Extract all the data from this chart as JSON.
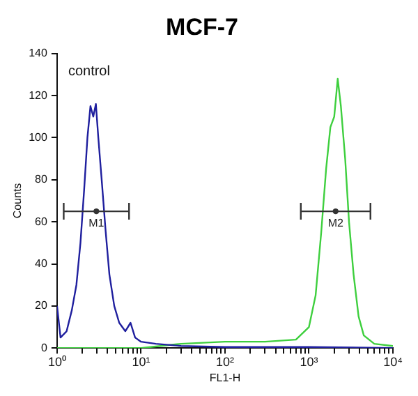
{
  "chart_data": {
    "type": "line",
    "title": "MCF-7",
    "xlabel": "FL1-H",
    "ylabel": "Counts",
    "log": "x",
    "legend": false,
    "grid": false,
    "xlim": [
      1,
      10000
    ],
    "ylim": [
      0,
      140
    ],
    "xticks": [
      {
        "value": 1,
        "label": "10⁰"
      },
      {
        "value": 2,
        "label": null
      },
      {
        "value": 3,
        "label": null
      },
      {
        "value": 4,
        "label": null
      },
      {
        "value": 5,
        "label": null
      },
      {
        "value": 6,
        "label": null
      },
      {
        "value": 7,
        "label": null
      },
      {
        "value": 8,
        "label": null
      },
      {
        "value": 9,
        "label": null
      },
      {
        "value": 10,
        "label": "10¹"
      },
      {
        "value": 20,
        "label": null
      },
      {
        "value": 30,
        "label": null
      },
      {
        "value": 40,
        "label": null
      },
      {
        "value": 50,
        "label": null
      },
      {
        "value": 60,
        "label": null
      },
      {
        "value": 70,
        "label": null
      },
      {
        "value": 80,
        "label": null
      },
      {
        "value": 90,
        "label": null
      },
      {
        "value": 100,
        "label": "10²"
      },
      {
        "value": 200,
        "label": null
      },
      {
        "value": 300,
        "label": null
      },
      {
        "value": 400,
        "label": null
      },
      {
        "value": 500,
        "label": null
      },
      {
        "value": 600,
        "label": null
      },
      {
        "value": 700,
        "label": null
      },
      {
        "value": 800,
        "label": null
      },
      {
        "value": 900,
        "label": null
      },
      {
        "value": 1000,
        "label": "10³"
      },
      {
        "value": 2000,
        "label": null
      },
      {
        "value": 3000,
        "label": null
      },
      {
        "value": 4000,
        "label": null
      },
      {
        "value": 5000,
        "label": null
      },
      {
        "value": 6000,
        "label": null
      },
      {
        "value": 7000,
        "label": null
      },
      {
        "value": 8000,
        "label": null
      },
      {
        "value": 9000,
        "label": null
      },
      {
        "value": 10000,
        "label": "10⁴"
      }
    ],
    "yticks": [
      0,
      20,
      40,
      60,
      80,
      100,
      120,
      140
    ],
    "series": [
      {
        "name": "control",
        "color": "#1f1f9e",
        "x": [
          1,
          1.1,
          1.3,
          1.5,
          1.7,
          1.9,
          2.1,
          2.3,
          2.5,
          2.7,
          2.9,
          3.1,
          3.4,
          3.8,
          4.2,
          4.8,
          5.5,
          6.5,
          7.5,
          8.5,
          10,
          15,
          30,
          100,
          1000,
          10000
        ],
        "values": [
          20,
          5,
          8,
          18,
          30,
          50,
          75,
          100,
          115,
          110,
          116,
          100,
          80,
          55,
          35,
          20,
          12,
          8,
          12,
          5,
          3,
          2,
          1,
          0.5,
          0.5,
          0
        ]
      },
      {
        "type": "scatter",
        "color": "#333333",
        "x": [
          2.94,
          2078
        ],
        "values": [
          65,
          65
        ],
        "xerrors": [
          [
            1.2,
            7.2
          ],
          [
            800,
            5400
          ]
        ],
        "value_labels": [
          "M1",
          "M2"
        ]
      },
      {
        "color": "#3ecf3e",
        "x": [
          1,
          10,
          30,
          100,
          300,
          700,
          1000,
          1200,
          1400,
          1600,
          1800,
          2000,
          2200,
          2400,
          2700,
          3000,
          3400,
          3900,
          4500,
          6000,
          10000
        ],
        "values": [
          0,
          0,
          2,
          3,
          3,
          4,
          10,
          25,
          55,
          85,
          105,
          110,
          128,
          115,
          90,
          60,
          35,
          15,
          6,
          2,
          1
        ]
      }
    ]
  }
}
